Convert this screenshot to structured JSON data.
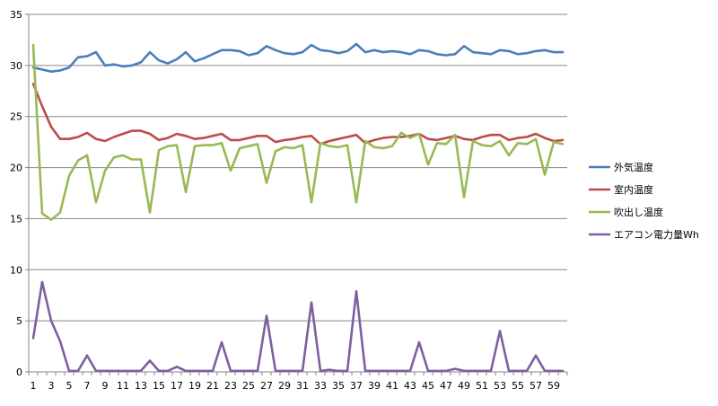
{
  "chart_data": {
    "type": "line",
    "title": "",
    "xlabel": "",
    "ylabel": "",
    "ylim": [
      0,
      35
    ],
    "yticks": [
      0,
      5,
      10,
      15,
      20,
      25,
      30,
      35
    ],
    "xtick_labels": [
      "1",
      "3",
      "5",
      "7",
      "9",
      "11",
      "13",
      "15",
      "17",
      "19",
      "21",
      "23",
      "25",
      "27",
      "29",
      "31",
      "33",
      "35",
      "37",
      "39",
      "41",
      "43",
      "45",
      "47",
      "49",
      "51",
      "53",
      "55",
      "57",
      "59"
    ],
    "grid": "horizontal",
    "legend_position": "right",
    "x": [
      1,
      2,
      3,
      4,
      5,
      6,
      7,
      8,
      9,
      10,
      11,
      12,
      13,
      14,
      15,
      16,
      17,
      18,
      19,
      20,
      21,
      22,
      23,
      24,
      25,
      26,
      27,
      28,
      29,
      30,
      31,
      32,
      33,
      34,
      35,
      36,
      37,
      38,
      39,
      40,
      41,
      42,
      43,
      44,
      45,
      46,
      47,
      48,
      49,
      50,
      51,
      52,
      53,
      54,
      55,
      56,
      57,
      58,
      59,
      60
    ],
    "series": [
      {
        "name": "外気温度",
        "color": "#4a7ebb",
        "values": [
          29.8,
          29.6,
          29.4,
          29.5,
          29.8,
          30.8,
          30.9,
          31.3,
          30.0,
          30.1,
          29.9,
          30.0,
          30.3,
          31.3,
          30.5,
          30.2,
          30.6,
          31.3,
          30.4,
          30.7,
          31.1,
          31.5,
          31.5,
          31.4,
          31.0,
          31.2,
          31.9,
          31.5,
          31.2,
          31.1,
          31.3,
          32.0,
          31.5,
          31.4,
          31.2,
          31.4,
          32.1,
          31.3,
          31.5,
          31.3,
          31.4,
          31.3,
          31.1,
          31.5,
          31.4,
          31.1,
          31.0,
          31.1,
          31.9,
          31.3,
          31.2,
          31.1,
          31.5,
          31.4,
          31.1,
          31.2,
          31.4,
          31.5,
          31.3,
          31.3
        ]
      },
      {
        "name": "室内温度",
        "color": "#be4b48",
        "values": [
          28.2,
          26.0,
          24.0,
          22.8,
          22.8,
          23.0,
          23.4,
          22.8,
          22.6,
          23.0,
          23.3,
          23.6,
          23.6,
          23.3,
          22.7,
          22.9,
          23.3,
          23.1,
          22.8,
          22.9,
          23.1,
          23.3,
          22.7,
          22.7,
          22.9,
          23.1,
          23.1,
          22.5,
          22.7,
          22.8,
          23.0,
          23.1,
          22.3,
          22.6,
          22.8,
          23.0,
          23.2,
          22.4,
          22.7,
          22.9,
          23.0,
          23.0,
          23.1,
          23.3,
          22.8,
          22.7,
          22.9,
          23.1,
          22.8,
          22.7,
          23.0,
          23.2,
          23.2,
          22.7,
          22.9,
          23.0,
          23.3,
          22.9,
          22.6,
          22.7
        ]
      },
      {
        "name": "吹出し温度",
        "color": "#98b954",
        "values": [
          32.0,
          15.5,
          14.9,
          15.6,
          19.2,
          20.7,
          21.2,
          16.6,
          19.7,
          21.0,
          21.2,
          20.8,
          20.8,
          15.6,
          21.7,
          22.1,
          22.2,
          17.6,
          22.1,
          22.2,
          22.2,
          22.4,
          19.7,
          21.9,
          22.1,
          22.3,
          18.5,
          21.6,
          22.0,
          21.9,
          22.2,
          16.6,
          22.4,
          22.1,
          22.0,
          22.2,
          16.6,
          22.6,
          22.0,
          21.9,
          22.1,
          23.4,
          22.9,
          23.3,
          20.3,
          22.4,
          22.3,
          23.2,
          17.1,
          22.6,
          22.2,
          22.1,
          22.6,
          21.2,
          22.4,
          22.3,
          22.8,
          19.3,
          22.5,
          22.3
        ]
      },
      {
        "name": "エアコン電力量Wh",
        "color": "#7d60a0",
        "values": [
          3.3,
          8.8,
          5.0,
          3.0,
          0.1,
          0.1,
          1.6,
          0.1,
          0.1,
          0.1,
          0.1,
          0.1,
          0.1,
          1.1,
          0.1,
          0.1,
          0.5,
          0.1,
          0.1,
          0.1,
          0.1,
          2.9,
          0.1,
          0.1,
          0.1,
          0.1,
          5.5,
          0.1,
          0.1,
          0.1,
          0.1,
          6.8,
          0.1,
          0.2,
          0.1,
          0.1,
          7.9,
          0.1,
          0.1,
          0.1,
          0.1,
          0.1,
          0.1,
          2.9,
          0.1,
          0.1,
          0.1,
          0.3,
          0.1,
          0.1,
          0.1,
          0.1,
          4.0,
          0.1,
          0.1,
          0.1,
          1.6,
          0.1,
          0.1,
          0.1
        ]
      }
    ]
  }
}
